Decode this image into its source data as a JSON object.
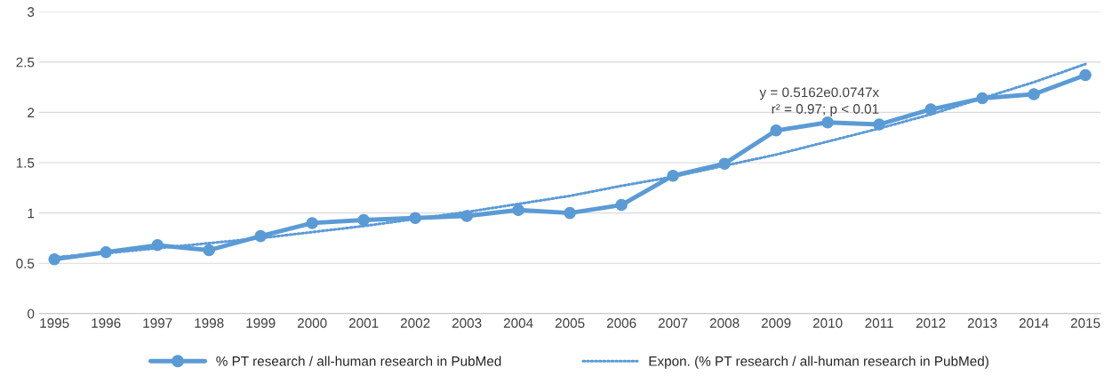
{
  "chart_data": {
    "type": "line",
    "categories": [
      "1995",
      "1996",
      "1997",
      "1998",
      "1999",
      "2000",
      "2001",
      "2002",
      "2003",
      "2004",
      "2005",
      "2006",
      "2007",
      "2008",
      "2009",
      "2010",
      "2011",
      "2012",
      "2013",
      "2014",
      "2015"
    ],
    "series": [
      {
        "name": "% PT research / all-human research in PubMed",
        "color": "#5b9bd5",
        "marker": "circle",
        "line_style": "solid",
        "values": [
          0.54,
          0.61,
          0.68,
          0.63,
          0.77,
          0.9,
          0.93,
          0.95,
          0.97,
          1.03,
          1.0,
          1.08,
          1.37,
          1.49,
          1.82,
          1.9,
          1.88,
          2.03,
          2.14,
          2.18,
          2.37
        ]
      },
      {
        "name": "Expon. (% PT research / all-human research in PubMed)",
        "color": "#5b9bd5",
        "marker": "none",
        "line_style": "dotted",
        "values": [
          0.56,
          0.6,
          0.65,
          0.7,
          0.75,
          0.81,
          0.87,
          0.94,
          1.01,
          1.09,
          1.17,
          1.27,
          1.36,
          1.47,
          1.58,
          1.71,
          1.84,
          1.98,
          2.14,
          2.3,
          2.48
        ]
      }
    ],
    "ylim": [
      0,
      3
    ],
    "yticks": [
      0,
      0.5,
      1,
      1.5,
      2,
      2.5,
      3
    ],
    "grid": "y",
    "legend": "bottom",
    "annotations": [
      {
        "text": "y = 0.5162e0.0747x\nr² = 0.97; p < 0.01",
        "x": "2011",
        "y": 1.84
      }
    ]
  }
}
